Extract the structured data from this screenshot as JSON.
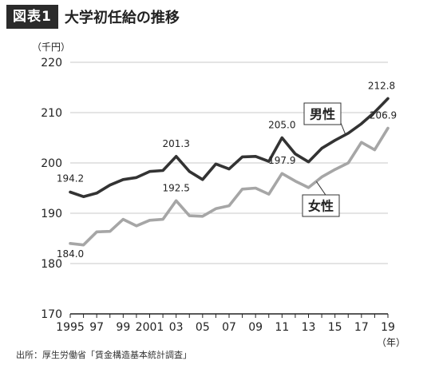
{
  "figure": {
    "badge": "図表1",
    "title": "大学初任給の推移",
    "source": "出所：厚生労働省「賃金構造基本統計調査」"
  },
  "chart_data": {
    "type": "line",
    "ylabel": "（千円）",
    "xlabel": "（年）",
    "ylim": [
      170,
      220
    ],
    "yticks": [
      170,
      180,
      190,
      200,
      210,
      220
    ],
    "x": [
      1995,
      1996,
      1997,
      1998,
      1999,
      2000,
      2001,
      2002,
      2003,
      2004,
      2005,
      2006,
      2007,
      2008,
      2009,
      2010,
      2011,
      2012,
      2013,
      2014,
      2015,
      2016,
      2017,
      2018,
      2019
    ],
    "xtick_labels": [
      {
        "x": 1995,
        "label": "1995"
      },
      {
        "x": 1997,
        "label": "97"
      },
      {
        "x": 1999,
        "label": "99"
      },
      {
        "x": 2001,
        "label": "2001"
      },
      {
        "x": 2003,
        "label": "03"
      },
      {
        "x": 2005,
        "label": "05"
      },
      {
        "x": 2007,
        "label": "07"
      },
      {
        "x": 2009,
        "label": "09"
      },
      {
        "x": 2011,
        "label": "11"
      },
      {
        "x": 2013,
        "label": "13"
      },
      {
        "x": 2015,
        "label": "15"
      },
      {
        "x": 2017,
        "label": "17"
      },
      {
        "x": 2019,
        "label": "19"
      }
    ],
    "grid": "horizontal",
    "series": [
      {
        "name": "男性",
        "color": "#333333",
        "values": [
          194.2,
          193.3,
          194.0,
          195.6,
          196.7,
          197.1,
          198.3,
          198.5,
          201.3,
          198.3,
          196.7,
          199.8,
          198.8,
          201.2,
          201.3,
          200.3,
          205.0,
          201.8,
          200.2,
          202.9,
          204.5,
          205.9,
          207.8,
          210.1,
          212.8
        ],
        "data_labels": [
          {
            "x": 1995,
            "text": "194.2"
          },
          {
            "x": 2003,
            "text": "201.3"
          },
          {
            "x": 2011,
            "text": "205.0"
          },
          {
            "x": 2019,
            "text": "212.8"
          }
        ]
      },
      {
        "name": "女性",
        "color": "#a6a6a6",
        "values": [
          184.0,
          183.7,
          186.3,
          186.4,
          188.8,
          187.5,
          188.6,
          188.8,
          192.5,
          189.5,
          189.4,
          190.9,
          191.5,
          194.8,
          195.0,
          193.8,
          197.9,
          196.4,
          195.1,
          197.2,
          198.7,
          200.0,
          204.1,
          202.6,
          206.9
        ],
        "data_labels": [
          {
            "x": 1995,
            "text": "184.0"
          },
          {
            "x": 2003,
            "text": "192.5"
          },
          {
            "x": 2011,
            "text": "197.9"
          },
          {
            "x": 2019,
            "text": "206.9"
          }
        ]
      }
    ]
  }
}
